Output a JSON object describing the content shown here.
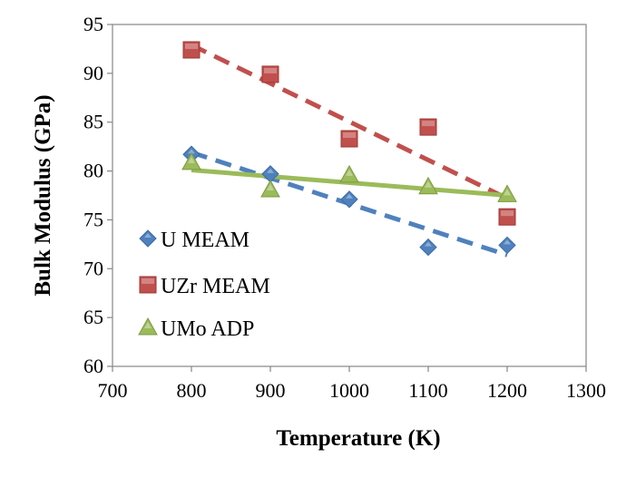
{
  "chart_data": {
    "type": "scatter",
    "title": "",
    "xlabel": "Temperature (K)",
    "ylabel": "Bulk Modulus (GPa)",
    "xlim": [
      700,
      1300
    ],
    "ylim": [
      60,
      95
    ],
    "xticks": [
      700,
      800,
      900,
      1000,
      1100,
      1200,
      1300
    ],
    "yticks": [
      60,
      65,
      70,
      75,
      80,
      85,
      90,
      95
    ],
    "grid": false,
    "legend_position": "left",
    "series": [
      {
        "name": "U MEAM",
        "marker": "diamond",
        "color": "#4f81bd",
        "x": [
          800,
          900,
          1000,
          1100,
          1200
        ],
        "y": [
          81.7,
          79.7,
          77.1,
          72.2,
          72.4
        ],
        "trendline": {
          "style": "dashed",
          "x": [
            800,
            1200
          ],
          "y": [
            81.9,
            71.4
          ]
        }
      },
      {
        "name": "UZr MEAM",
        "marker": "square",
        "color": "#c0504d",
        "x": [
          800,
          900,
          1000,
          1100,
          1200
        ],
        "y": [
          92.4,
          89.9,
          83.3,
          84.5,
          75.3
        ],
        "trendline": {
          "style": "dashed",
          "x": [
            800,
            1200
          ],
          "y": [
            92.9,
            77.2
          ]
        }
      },
      {
        "name": "UMo ADP",
        "marker": "triangle",
        "color": "#9bbb59",
        "x": [
          800,
          900,
          1000,
          1100,
          1200
        ],
        "y": [
          80.9,
          78.1,
          79.6,
          78.4,
          77.6
        ],
        "trendline": {
          "style": "solid",
          "x": [
            800,
            1200
          ],
          "y": [
            80.1,
            77.5
          ]
        }
      }
    ]
  }
}
